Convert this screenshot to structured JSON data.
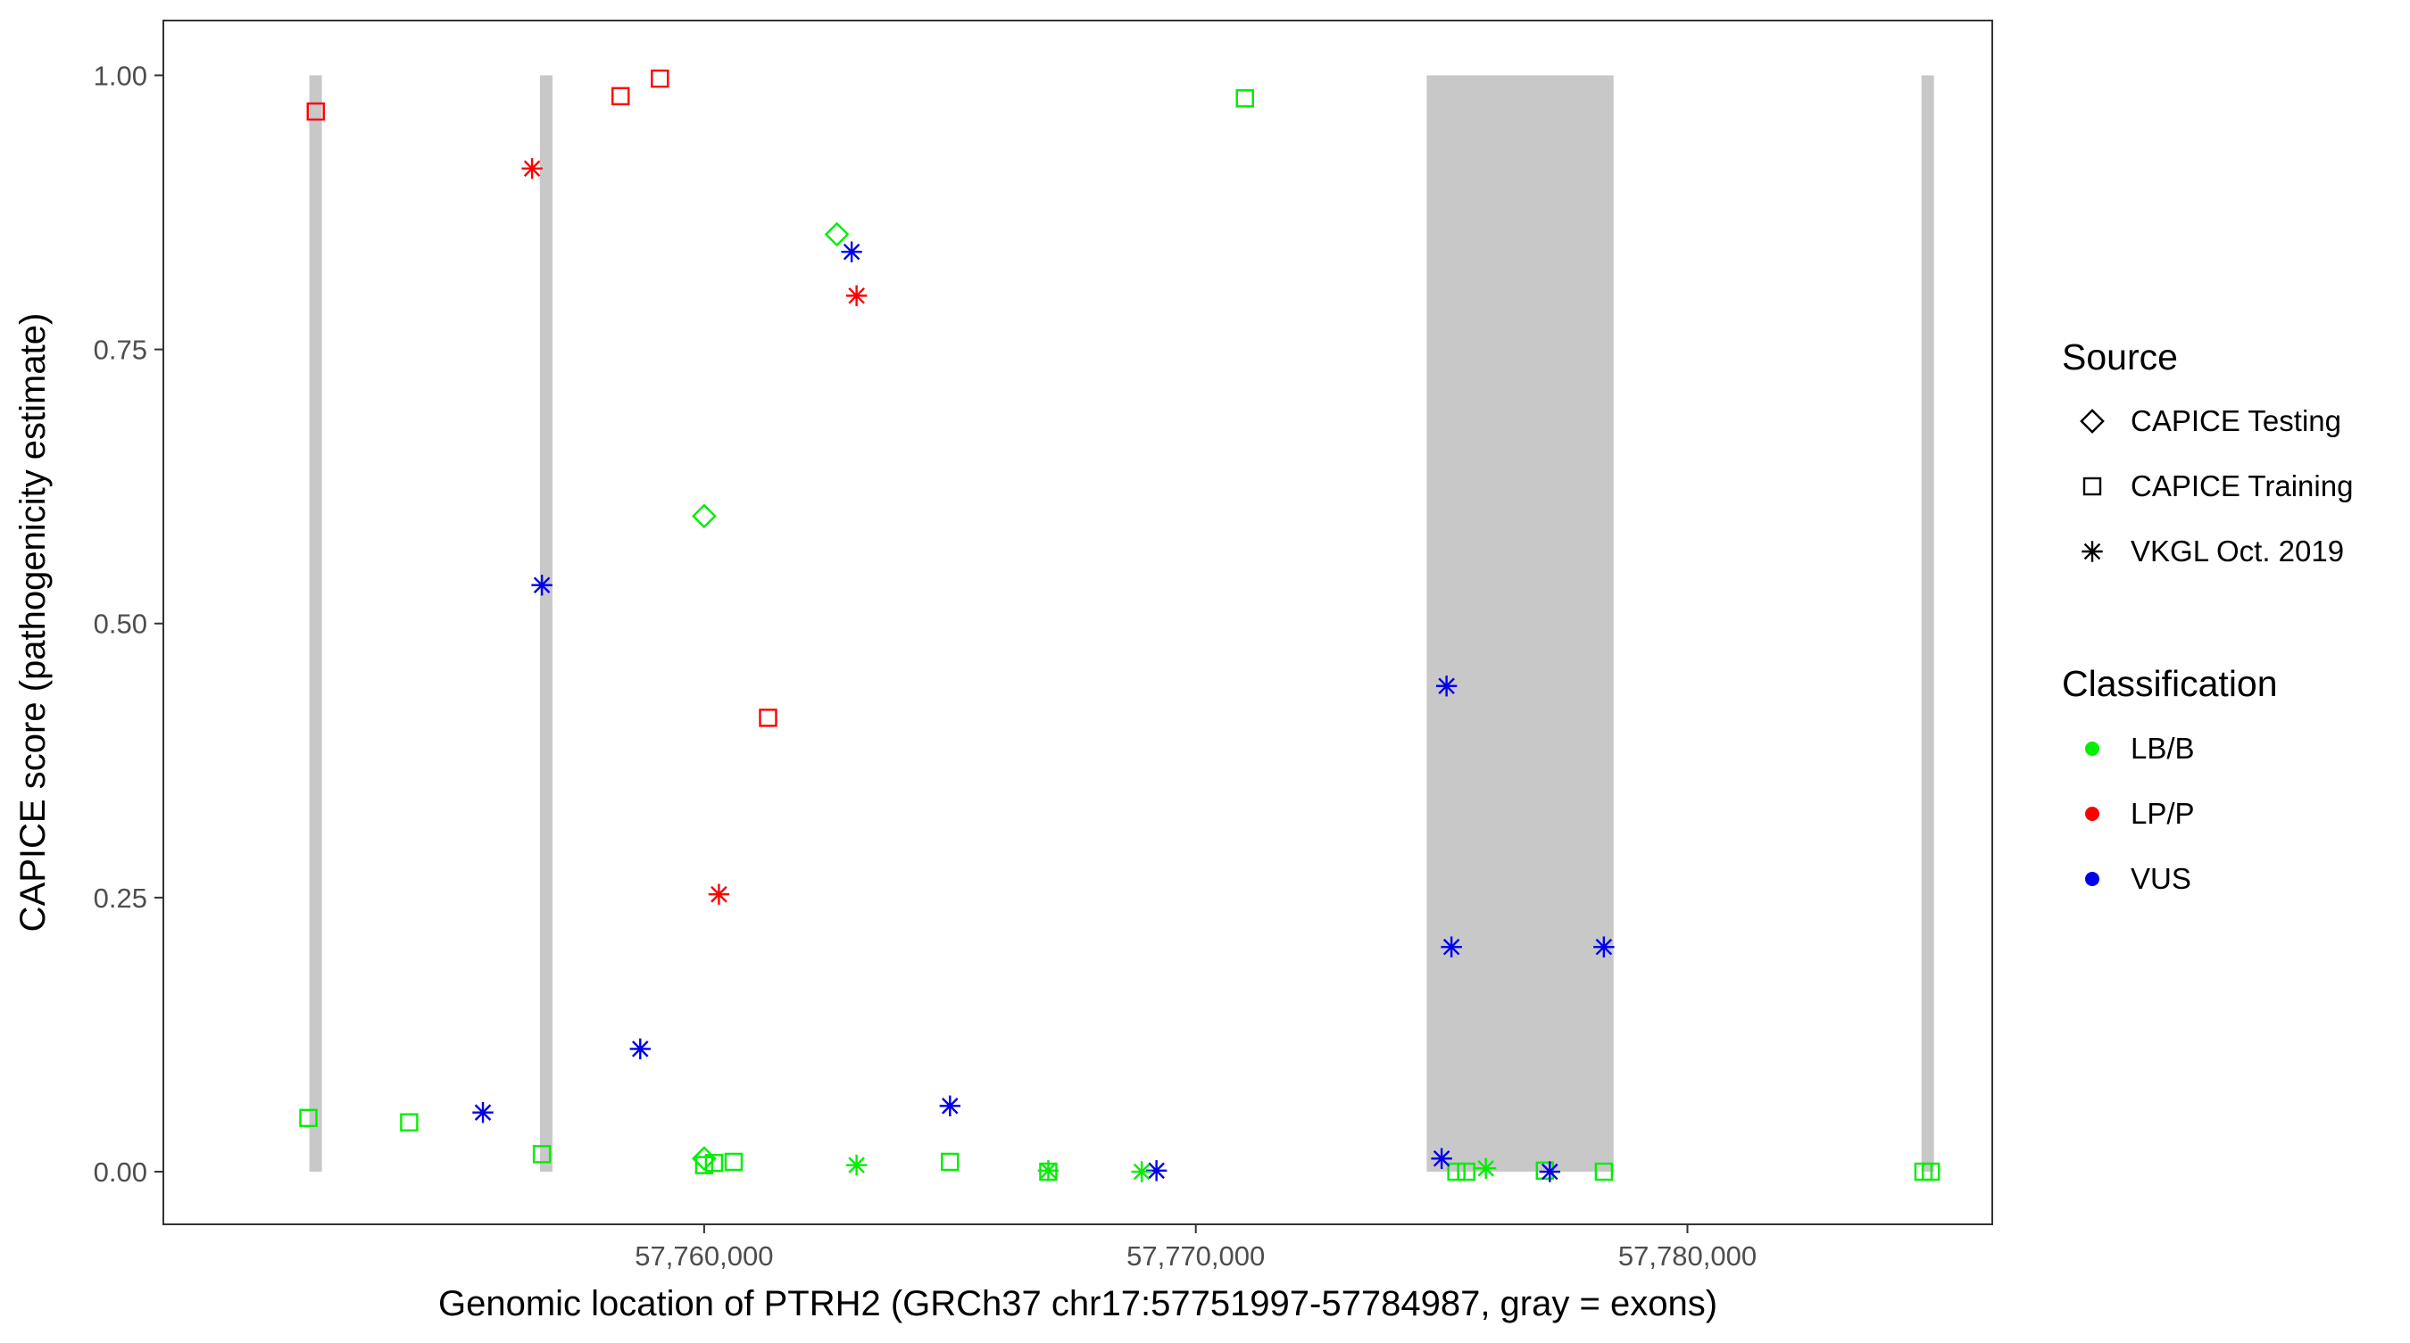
{
  "chart_data": {
    "type": "scatter",
    "title": "",
    "xlabel": "Genomic location of PTRH2 (GRCh37 chr17:57751997-57784987, gray = exons)",
    "ylabel": "CAPICE score (pathogenicity estimate)",
    "xlim": [
      57749000,
      57786200
    ],
    "ylim": [
      -0.048,
      1.05
    ],
    "x_ticks": [
      57760000,
      57770000,
      57780000
    ],
    "x_tick_labels": [
      "57,760,000",
      "57,770,000",
      "57,780,000"
    ],
    "y_ticks": [
      0,
      0.25,
      0.5,
      0.75,
      1.0
    ],
    "y_tick_labels": [
      "0.00",
      "0.25",
      "0.50",
      "0.75",
      "1.00"
    ],
    "grid": false,
    "legend_position": "right",
    "exons": [
      {
        "start": 57751997,
        "end": 57752197
      },
      {
        "start": 57756697,
        "end": 57756877
      },
      {
        "start": 57774697,
        "end": 57778497
      },
      {
        "start": 57784787,
        "end": 57784987
      }
    ],
    "legend": {
      "source": {
        "title": "Source",
        "items": [
          {
            "label": "CAPICE Testing",
            "shape": "diamond"
          },
          {
            "label": "CAPICE Training",
            "shape": "square"
          },
          {
            "label": "VKGL Oct. 2019",
            "shape": "asterisk"
          }
        ]
      },
      "classification": {
        "title": "Classification",
        "items": [
          {
            "label": "LB/B",
            "color": "#00ee00"
          },
          {
            "label": "LP/P",
            "color": "#ff0000"
          },
          {
            "label": "VUS",
            "color": "#0000ee"
          }
        ]
      }
    },
    "series": [
      {
        "source": "CAPICE Testing",
        "points": [
          {
            "x": 57762700,
            "y": 0.855,
            "cls": "LB/B"
          },
          {
            "x": 57760000,
            "y": 0.598,
            "cls": "LB/B"
          },
          {
            "x": 57760000,
            "y": 0.012,
            "cls": "LB/B"
          }
        ]
      },
      {
        "source": "CAPICE Training",
        "points": [
          {
            "x": 57752100,
            "y": 0.967,
            "cls": "LP/P"
          },
          {
            "x": 57758300,
            "y": 0.981,
            "cls": "LP/P"
          },
          {
            "x": 57759100,
            "y": 0.997,
            "cls": "LP/P"
          },
          {
            "x": 57761300,
            "y": 0.414,
            "cls": "LP/P"
          },
          {
            "x": 57771000,
            "y": 0.979,
            "cls": "LP/P"
          },
          {
            "x": 57771000,
            "y": 0.979,
            "cls": "LB/B"
          },
          {
            "x": 57751950,
            "y": 0.049,
            "cls": "LB/B"
          },
          {
            "x": 57754000,
            "y": 0.045,
            "cls": "LB/B"
          },
          {
            "x": 57756700,
            "y": 0.016,
            "cls": "LB/B"
          },
          {
            "x": 57760000,
            "y": 0.006,
            "cls": "LB/B"
          },
          {
            "x": 57760200,
            "y": 0.008,
            "cls": "LB/B"
          },
          {
            "x": 57760600,
            "y": 0.009,
            "cls": "LB/B"
          },
          {
            "x": 57765000,
            "y": 0.009,
            "cls": "LB/B"
          },
          {
            "x": 57767000,
            "y": 0.0,
            "cls": "LB/B"
          },
          {
            "x": 57775300,
            "y": 0.0,
            "cls": "LB/B"
          },
          {
            "x": 57775500,
            "y": 0.0,
            "cls": "LB/B"
          },
          {
            "x": 57777100,
            "y": 0.001,
            "cls": "LB/B"
          },
          {
            "x": 57778300,
            "y": 0.0,
            "cls": "LB/B"
          },
          {
            "x": 57784800,
            "y": 0.0,
            "cls": "LB/B"
          },
          {
            "x": 57784950,
            "y": 0.0,
            "cls": "LB/B"
          }
        ]
      },
      {
        "source": "VKGL Oct. 2019",
        "points": [
          {
            "x": 57756500,
            "y": 0.915,
            "cls": "LP/P"
          },
          {
            "x": 57763100,
            "y": 0.799,
            "cls": "LP/P"
          },
          {
            "x": 57760300,
            "y": 0.253,
            "cls": "LP/P"
          },
          {
            "x": 57763000,
            "y": 0.839,
            "cls": "VUS"
          },
          {
            "x": 57756700,
            "y": 0.535,
            "cls": "VUS"
          },
          {
            "x": 57758700,
            "y": 0.112,
            "cls": "VUS"
          },
          {
            "x": 57755500,
            "y": 0.054,
            "cls": "VUS"
          },
          {
            "x": 57765000,
            "y": 0.06,
            "cls": "VUS"
          },
          {
            "x": 57769200,
            "y": 0.001,
            "cls": "VUS"
          },
          {
            "x": 57775100,
            "y": 0.443,
            "cls": "VUS"
          },
          {
            "x": 57775200,
            "y": 0.205,
            "cls": "VUS"
          },
          {
            "x": 57778300,
            "y": 0.205,
            "cls": "VUS"
          },
          {
            "x": 57775000,
            "y": 0.012,
            "cls": "VUS"
          },
          {
            "x": 57777200,
            "y": 0.0,
            "cls": "VUS"
          },
          {
            "x": 57763100,
            "y": 0.006,
            "cls": "LB/B"
          },
          {
            "x": 57767000,
            "y": 0.001,
            "cls": "LB/B"
          },
          {
            "x": 57768900,
            "y": 0.0,
            "cls": "LB/B"
          },
          {
            "x": 57775900,
            "y": 0.003,
            "cls": "LB/B"
          }
        ]
      }
    ]
  }
}
